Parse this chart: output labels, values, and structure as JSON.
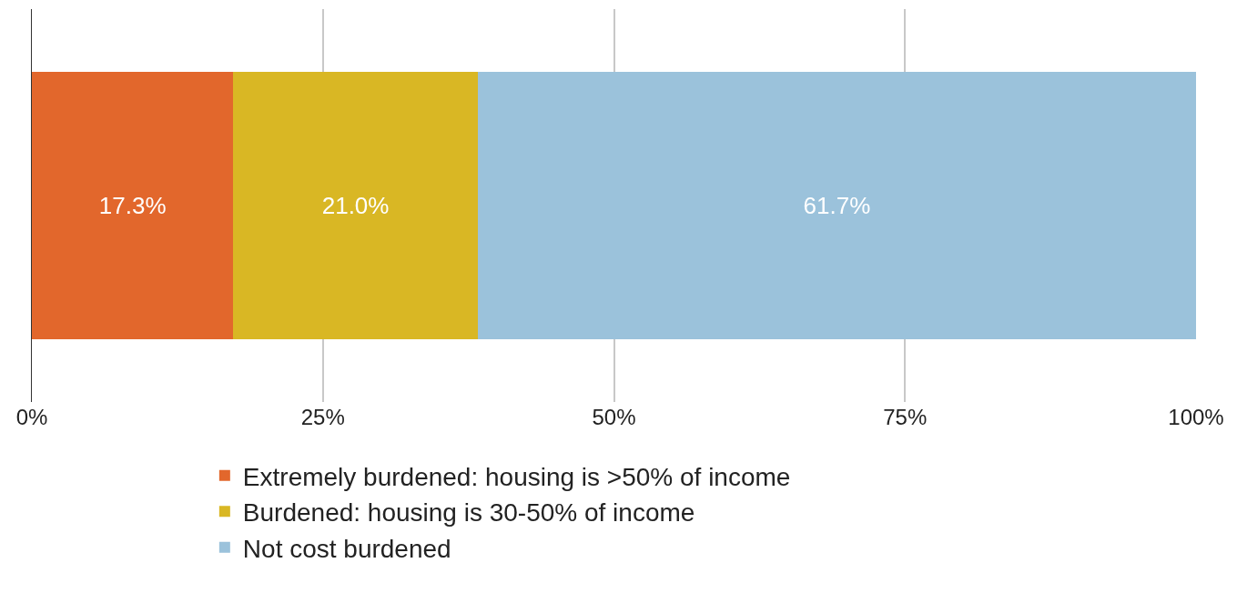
{
  "chart_data": {
    "type": "bar",
    "orientation": "horizontal",
    "stacked": true,
    "categories": [
      null
    ],
    "series": [
      {
        "name": "Extremely burdened: housing is >50% of income",
        "color": "#e2672c",
        "values": [
          17.3
        ],
        "value_labels": [
          "17.3%"
        ]
      },
      {
        "name": "Burdened: housing is 30-50% of income",
        "color": "#d9b724",
        "values": [
          21.0
        ],
        "value_labels": [
          "21.0%"
        ]
      },
      {
        "name": "Not cost burdened",
        "color": "#9bc2db",
        "values": [
          61.7
        ],
        "value_labels": [
          "61.7%"
        ]
      }
    ],
    "xlim": [
      0,
      100
    ],
    "xticks": [
      {
        "value": 0,
        "label": "0%"
      },
      {
        "value": 25,
        "label": "25%"
      },
      {
        "value": 50,
        "label": "50%"
      },
      {
        "value": 75,
        "label": "75%"
      },
      {
        "value": 100,
        "label": "100%"
      }
    ],
    "grid": "x",
    "legend": "bottom"
  }
}
